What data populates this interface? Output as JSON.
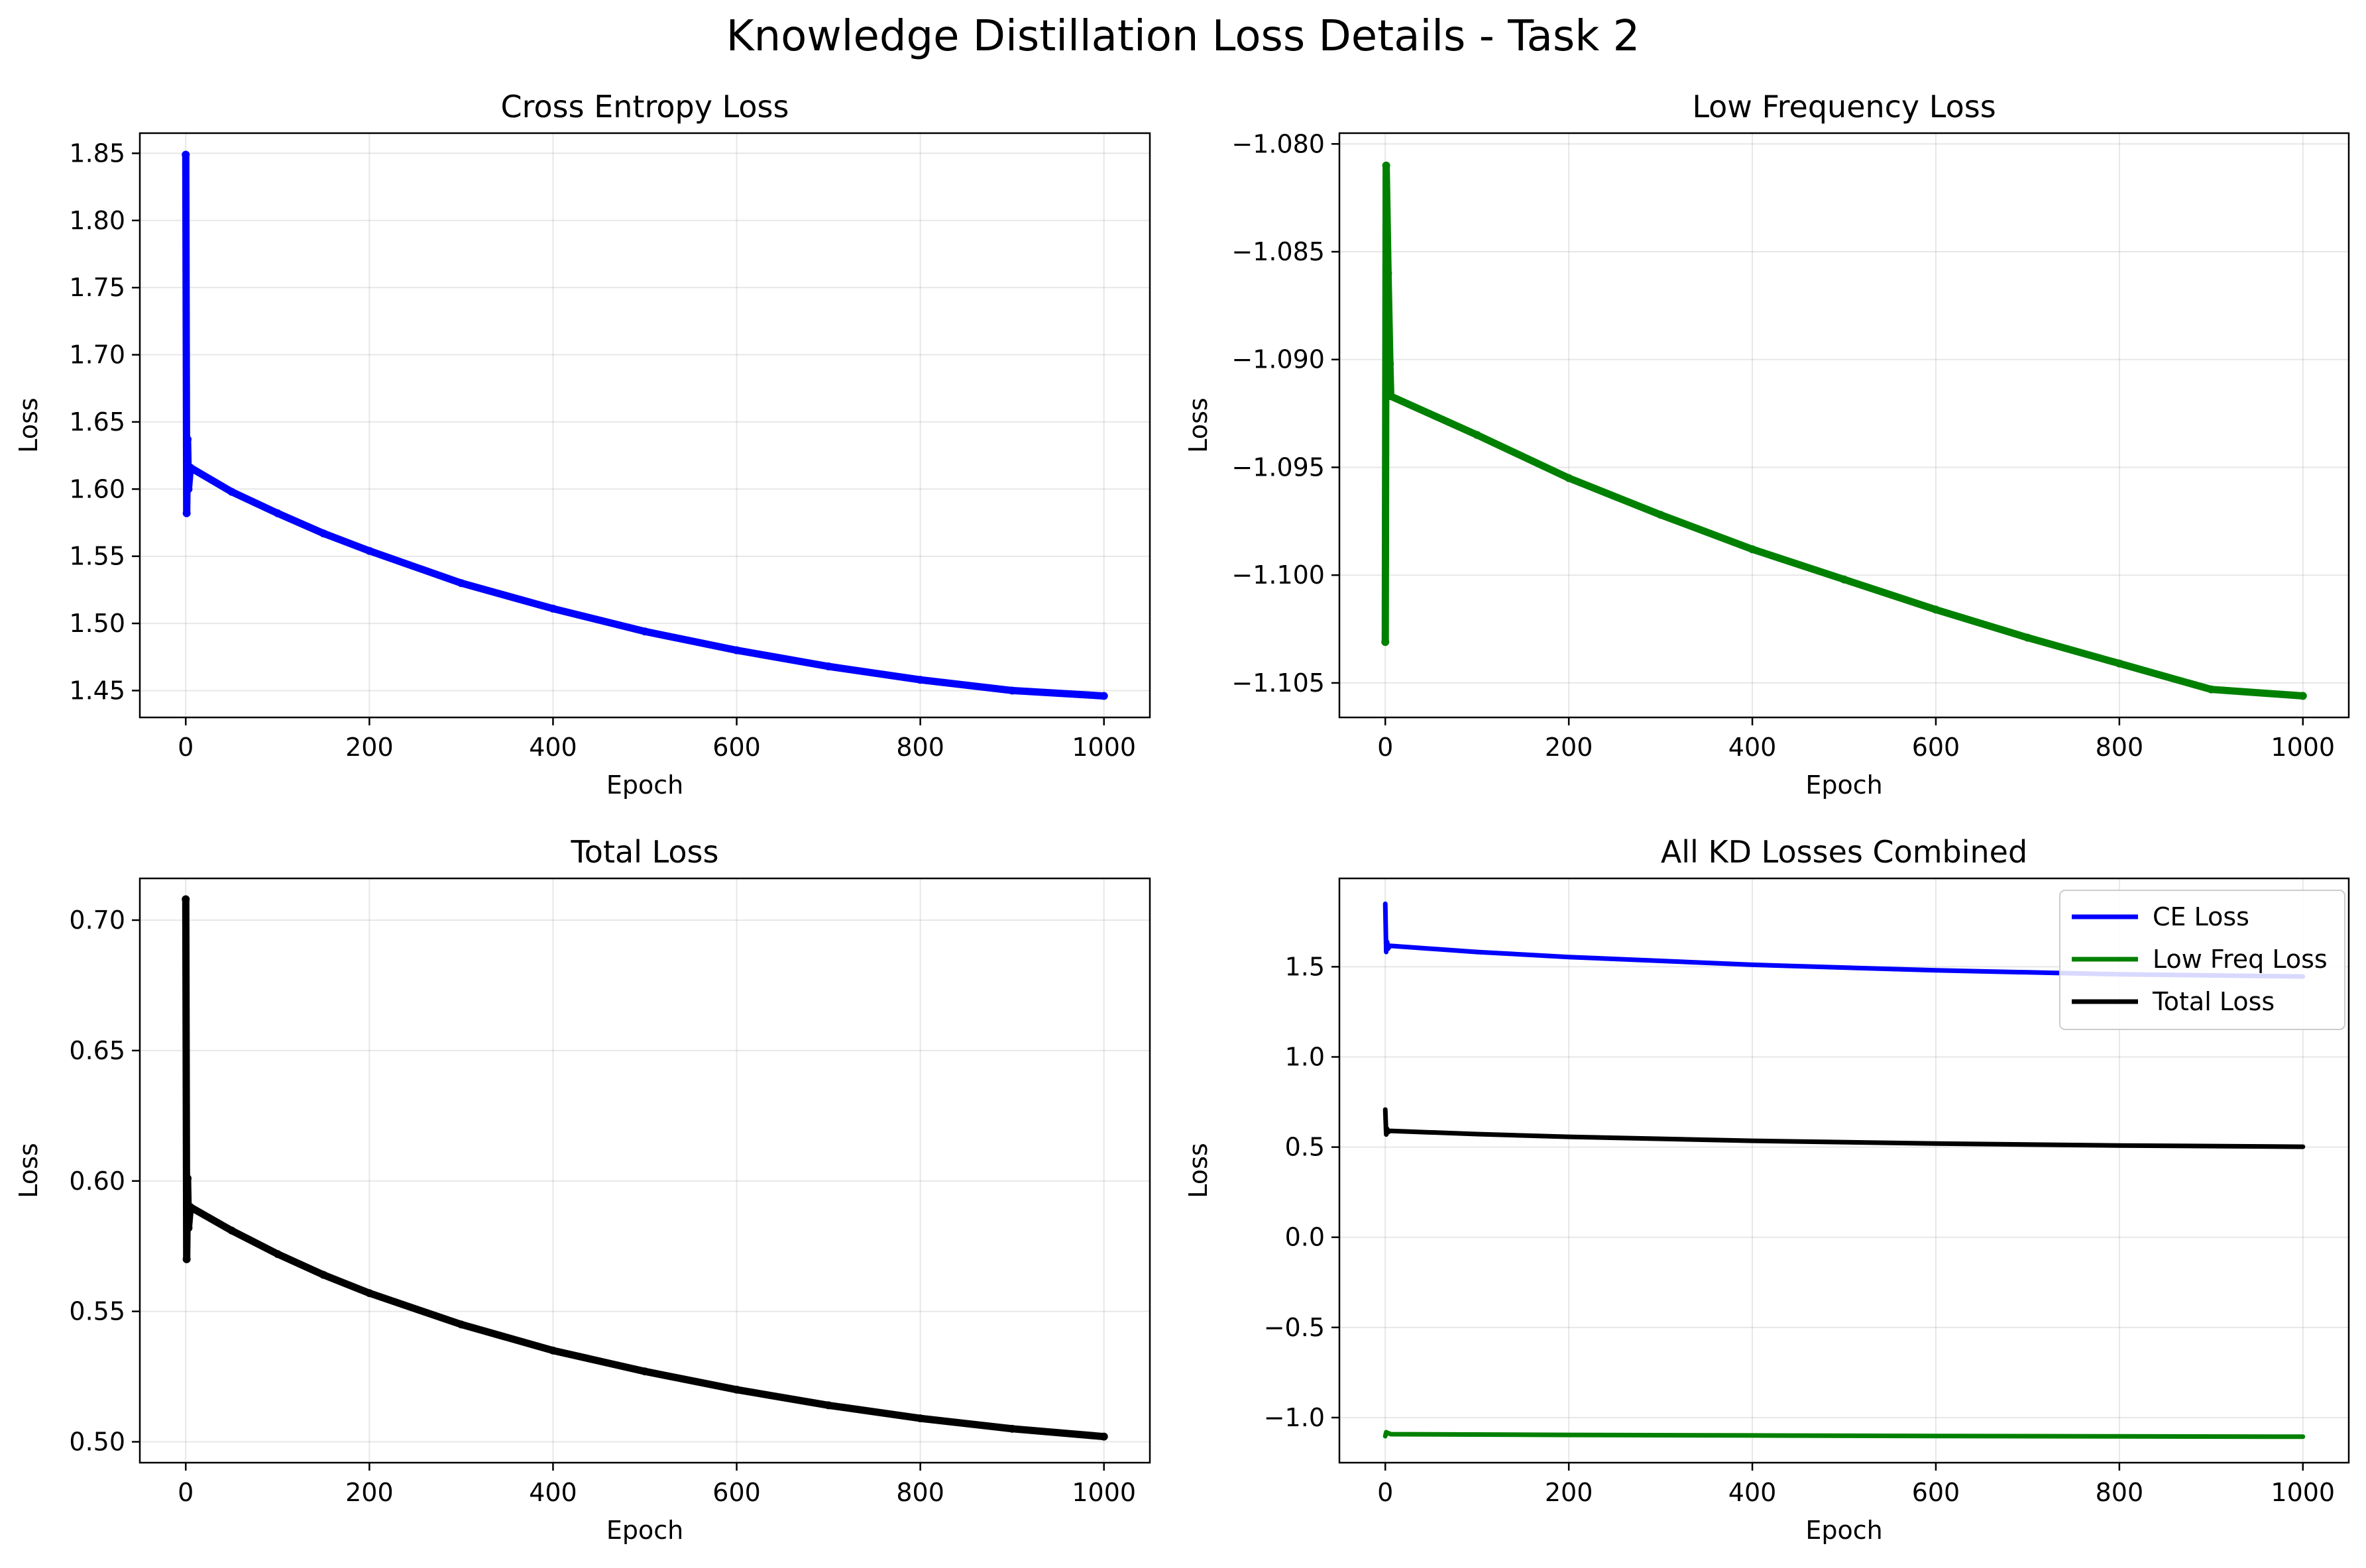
{
  "figure": {
    "title": "Knowledge Distillation Loss Details - Task 2"
  },
  "chart_data": [
    {
      "type": "line",
      "title": "Cross Entropy Loss",
      "xlabel": "Epoch",
      "ylabel": "Loss",
      "xlim": [
        -50,
        1050
      ],
      "ylim": [
        1.43,
        1.865
      ],
      "xticks": [
        0,
        200,
        400,
        600,
        800,
        1000
      ],
      "yticks": [
        1.45,
        1.5,
        1.55,
        1.6,
        1.65,
        1.7,
        1.75,
        1.8,
        1.85
      ],
      "ytick_labels": [
        "1.45",
        "1.50",
        "1.55",
        "1.60",
        "1.65",
        "1.70",
        "1.75",
        "1.80",
        "1.85"
      ],
      "grid": true,
      "series": [
        {
          "color": "#0000ff",
          "markers": true,
          "points": [
            [
              0,
              1.849
            ],
            [
              1,
              1.582
            ],
            [
              2,
              1.637
            ],
            [
              3,
              1.6
            ],
            [
              5,
              1.616
            ],
            [
              50,
              1.598
            ],
            [
              100,
              1.582
            ],
            [
              150,
              1.567
            ],
            [
              200,
              1.554
            ],
            [
              300,
              1.53
            ],
            [
              400,
              1.511
            ],
            [
              500,
              1.494
            ],
            [
              600,
              1.48
            ],
            [
              700,
              1.468
            ],
            [
              800,
              1.458
            ],
            [
              900,
              1.45
            ],
            [
              1000,
              1.446
            ]
          ]
        }
      ]
    },
    {
      "type": "line",
      "title": "Low Frequency Loss",
      "xlabel": "Epoch",
      "ylabel": "Loss",
      "xlim": [
        -50,
        1050
      ],
      "ylim": [
        -1.1066,
        -1.0795
      ],
      "xticks": [
        0,
        200,
        400,
        600,
        800,
        1000
      ],
      "yticks": [
        -1.105,
        -1.1,
        -1.095,
        -1.09,
        -1.085,
        -1.08
      ],
      "ytick_labels": [
        "−1.105",
        "−1.100",
        "−1.095",
        "−1.090",
        "−1.085",
        "−1.080"
      ],
      "grid": true,
      "series": [
        {
          "color": "#008000",
          "markers": true,
          "points": [
            [
              0,
              -1.1031
            ],
            [
              1,
              -1.081
            ],
            [
              3,
              -1.086
            ],
            [
              5,
              -1.0902
            ],
            [
              6,
              -1.0917
            ],
            [
              100,
              -1.0935
            ],
            [
              200,
              -1.0955
            ],
            [
              300,
              -1.0972
            ],
            [
              400,
              -1.0988
            ],
            [
              500,
              -1.1002
            ],
            [
              600,
              -1.1016
            ],
            [
              700,
              -1.1029
            ],
            [
              800,
              -1.1041
            ],
            [
              900,
              -1.1053
            ],
            [
              1000,
              -1.1056
            ]
          ]
        }
      ]
    },
    {
      "type": "line",
      "title": "Total Loss",
      "xlabel": "Epoch",
      "ylabel": "Loss",
      "xlim": [
        -50,
        1050
      ],
      "ylim": [
        0.492,
        0.716
      ],
      "xticks": [
        0,
        200,
        400,
        600,
        800,
        1000
      ],
      "yticks": [
        0.5,
        0.55,
        0.6,
        0.65,
        0.7
      ],
      "ytick_labels": [
        "0.50",
        "0.55",
        "0.60",
        "0.65",
        "0.70"
      ],
      "grid": true,
      "series": [
        {
          "color": "#000000",
          "markers": true,
          "points": [
            [
              0,
              0.708
            ],
            [
              1,
              0.57
            ],
            [
              2,
              0.601
            ],
            [
              3,
              0.582
            ],
            [
              5,
              0.59
            ],
            [
              50,
              0.581
            ],
            [
              100,
              0.572
            ],
            [
              150,
              0.564
            ],
            [
              200,
              0.557
            ],
            [
              300,
              0.545
            ],
            [
              400,
              0.535
            ],
            [
              500,
              0.527
            ],
            [
              600,
              0.52
            ],
            [
              700,
              0.514
            ],
            [
              800,
              0.509
            ],
            [
              900,
              0.505
            ],
            [
              1000,
              0.502
            ]
          ]
        }
      ]
    },
    {
      "type": "line",
      "title": "All KD Losses Combined",
      "xlabel": "Epoch",
      "ylabel": "Loss",
      "xlim": [
        -50,
        1050
      ],
      "ylim": [
        -1.25,
        1.99
      ],
      "xticks": [
        0,
        200,
        400,
        600,
        800,
        1000
      ],
      "yticks": [
        -1.0,
        -0.5,
        0.0,
        0.5,
        1.0,
        1.5
      ],
      "ytick_labels": [
        "−1.0",
        "−0.5",
        "0.0",
        "0.5",
        "1.0",
        "1.5"
      ],
      "grid": true,
      "legend": "top-right",
      "series": [
        {
          "name": "CE Loss",
          "color": "#0000ff",
          "markers": false,
          "points": [
            [
              0,
              1.849
            ],
            [
              1,
              1.582
            ],
            [
              2,
              1.637
            ],
            [
              3,
              1.6
            ],
            [
              5,
              1.616
            ],
            [
              100,
              1.582
            ],
            [
              200,
              1.554
            ],
            [
              400,
              1.511
            ],
            [
              600,
              1.48
            ],
            [
              800,
              1.458
            ],
            [
              1000,
              1.446
            ]
          ]
        },
        {
          "name": "Low Freq Loss",
          "color": "#008000",
          "markers": false,
          "points": [
            [
              0,
              -1.103
            ],
            [
              1,
              -1.081
            ],
            [
              3,
              -1.086
            ],
            [
              5,
              -1.09
            ],
            [
              6,
              -1.092
            ],
            [
              200,
              -1.096
            ],
            [
              400,
              -1.099
            ],
            [
              600,
              -1.102
            ],
            [
              800,
              -1.104
            ],
            [
              1000,
              -1.106
            ]
          ]
        },
        {
          "name": "Total Loss",
          "color": "#000000",
          "markers": false,
          "points": [
            [
              0,
              0.708
            ],
            [
              1,
              0.57
            ],
            [
              2,
              0.601
            ],
            [
              3,
              0.582
            ],
            [
              5,
              0.59
            ],
            [
              100,
              0.572
            ],
            [
              200,
              0.557
            ],
            [
              400,
              0.535
            ],
            [
              600,
              0.52
            ],
            [
              800,
              0.509
            ],
            [
              1000,
              0.502
            ]
          ]
        }
      ]
    }
  ]
}
